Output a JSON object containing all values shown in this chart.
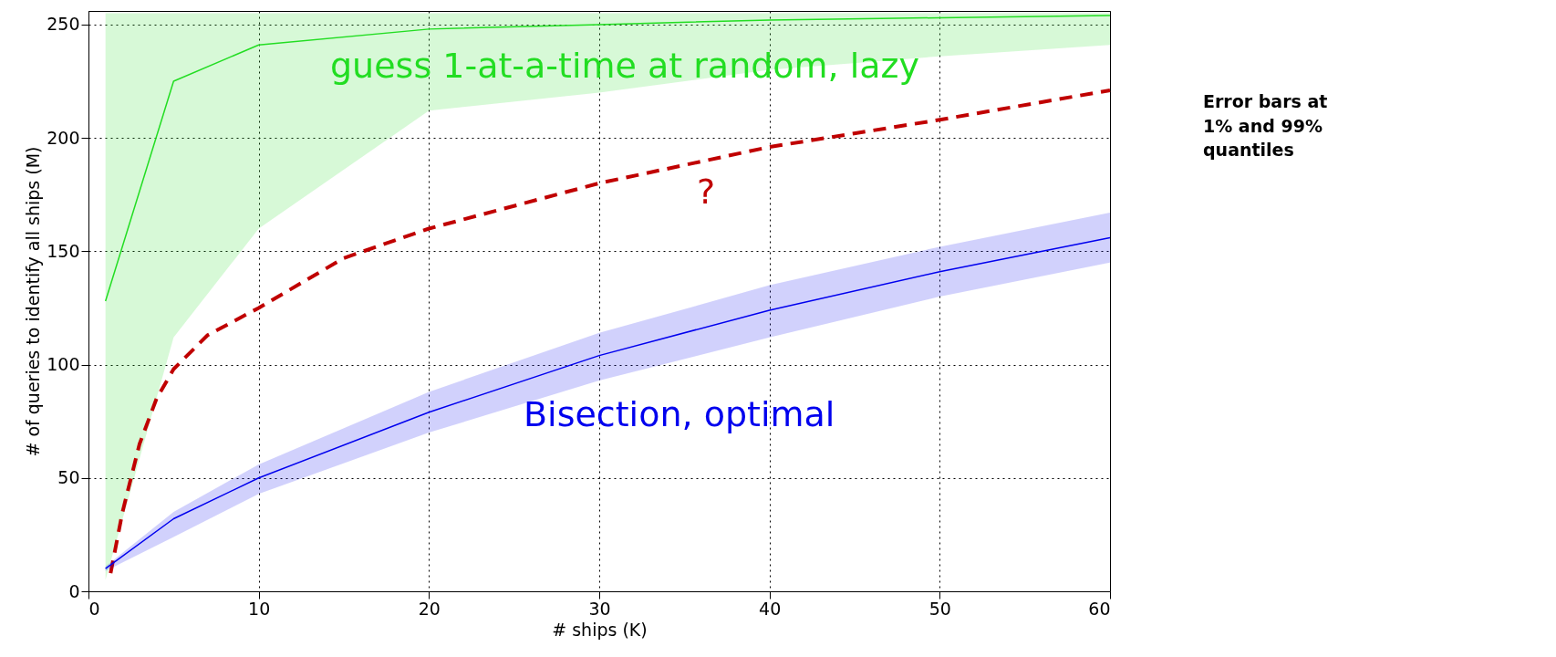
{
  "chart_data": {
    "type": "line",
    "xlabel": "# ships (K)",
    "ylabel": "# of queries to identify all ships (M)",
    "xlim": [
      0,
      60
    ],
    "ylim": [
      0,
      256
    ],
    "xticks": [
      0,
      10,
      20,
      30,
      40,
      50,
      60
    ],
    "yticks": [
      0,
      50,
      100,
      150,
      200,
      250
    ],
    "grid": true,
    "series": [
      {
        "name": "guess 1-at-a-time at random, lazy",
        "color": "#22dd22",
        "x": [
          1,
          5,
          10,
          20,
          30,
          40,
          50,
          60
        ],
        "values": [
          128,
          225,
          241,
          248,
          250,
          252,
          253,
          254
        ],
        "lower": [
          5,
          112,
          160,
          212,
          220,
          230,
          236,
          241
        ],
        "upper": [
          255,
          255,
          255,
          255,
          255,
          255,
          255,
          255
        ]
      },
      {
        "name": "?",
        "color": "#c00000",
        "line_style": "dashed",
        "x": [
          1.3,
          2,
          3,
          4,
          5,
          7,
          10,
          15,
          20,
          30,
          40,
          50,
          60
        ],
        "values": [
          8,
          35,
          65,
          85,
          98,
          113,
          125,
          147,
          160,
          180,
          196,
          208,
          221
        ]
      },
      {
        "name": "Bisection, optimal",
        "color": "#0000ee",
        "x": [
          1,
          5,
          10,
          20,
          30,
          40,
          50,
          60
        ],
        "values": [
          10,
          32,
          50,
          79,
          104,
          124,
          141,
          156
        ],
        "lower": [
          9,
          24,
          43,
          70,
          93,
          112,
          130,
          145
        ],
        "upper": [
          11,
          35,
          56,
          88,
          114,
          135,
          152,
          167
        ]
      }
    ],
    "annotations": [
      "Error bars at 1% and 99% quantiles"
    ]
  }
}
